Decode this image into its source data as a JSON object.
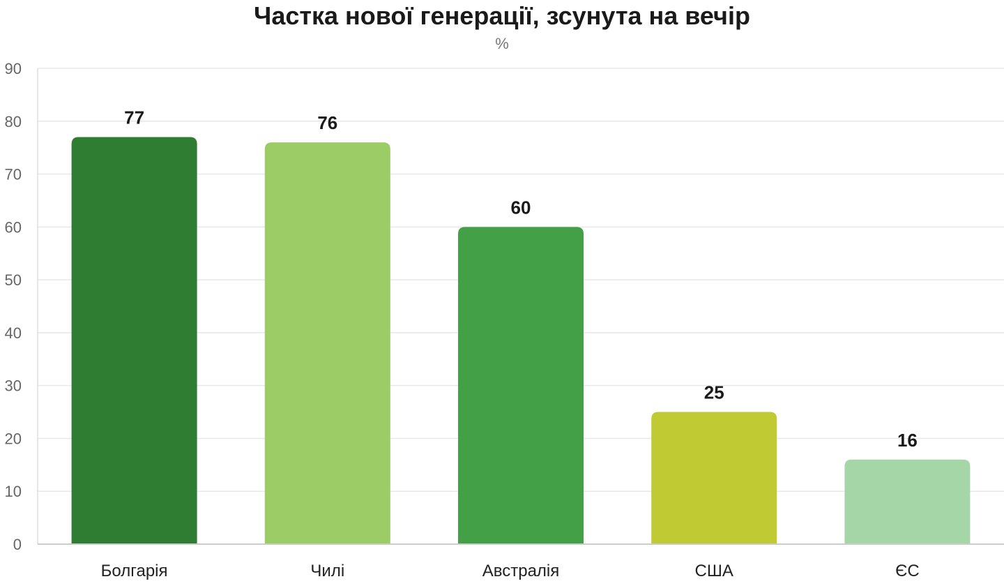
{
  "chart_data": {
    "type": "bar",
    "title": "Частка нової генерації, зсунута на вечір",
    "subtitle": "%",
    "xlabel": "",
    "ylabel": "",
    "categories": [
      "Болгарія",
      "Чилі",
      "Австралія",
      "США",
      "ЄС"
    ],
    "values": [
      77,
      76,
      60,
      25,
      16
    ],
    "colors": [
      "#2e7d32",
      "#9ccc65",
      "#43a047",
      "#c0ca33",
      "#a5d6a7"
    ],
    "ylim": [
      0,
      90
    ],
    "yticks": [
      0,
      10,
      20,
      30,
      40,
      50,
      60,
      70,
      80,
      90
    ],
    "grid": true,
    "legend": "none",
    "data_labels": true
  }
}
